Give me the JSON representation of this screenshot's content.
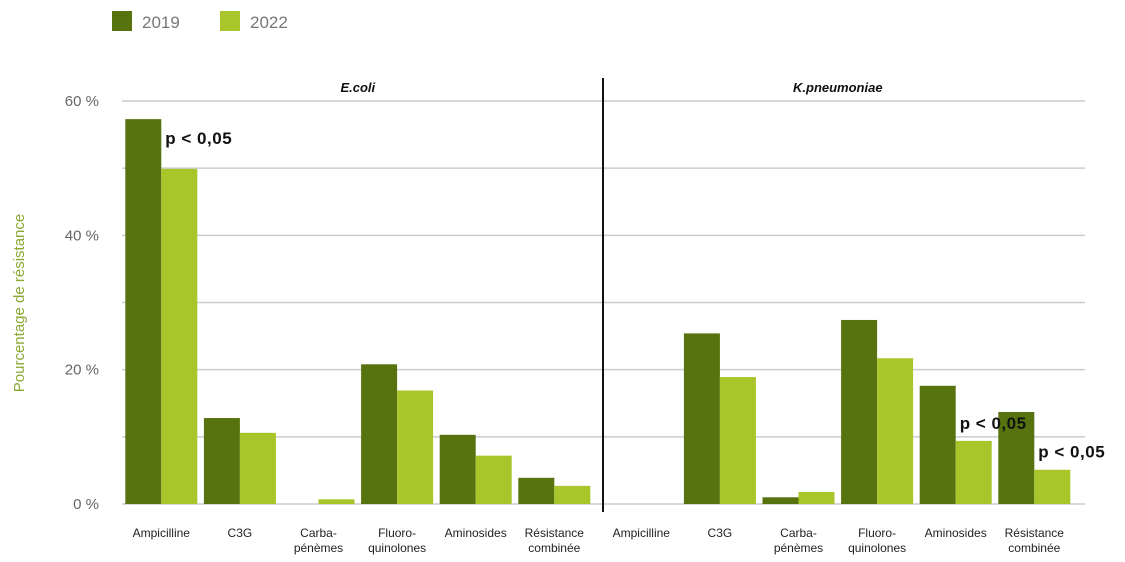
{
  "chart_data": {
    "type": "bar",
    "ylabel": "Pourcentage de résistance",
    "ylim": [
      0,
      60
    ],
    "yticks": [
      "0 %",
      "20 %",
      "40 %",
      "60 %"
    ],
    "grid": true,
    "legend_position": "top-left",
    "colors": {
      "2019": "#56730f",
      "2022": "#a8c62a",
      "ylabel": "#8aa832"
    },
    "panels": [
      {
        "title": "E.coli",
        "categories": [
          "Ampicilline",
          "C3G",
          "Carba-\npénèmes",
          "Fluoro-\nquinolones",
          "Aminosides",
          "Résistance\ncombinée"
        ],
        "series": [
          {
            "name": "2019",
            "values": [
              57.3,
              12.8,
              0.0,
              20.8,
              10.3,
              3.9
            ]
          },
          {
            "name": "2022",
            "values": [
              49.9,
              10.6,
              0.7,
              16.9,
              7.2,
              2.7
            ]
          }
        ],
        "annotations": [
          {
            "category_index": 0,
            "text": "p < 0,05"
          }
        ]
      },
      {
        "title": "K.pneumoniae",
        "categories": [
          "Ampicilline",
          "C3G",
          "Carba-\npénèmes",
          "Fluoro-\nquinolones",
          "Aminosides",
          "Résistance\ncombinée"
        ],
        "series": [
          {
            "name": "2019",
            "values": [
              0,
              25.4,
              1.0,
              27.4,
              17.6,
              13.7
            ]
          },
          {
            "name": "2022",
            "values": [
              0,
              18.9,
              1.8,
              21.7,
              9.4,
              5.1
            ]
          }
        ],
        "annotations": [
          {
            "category_index": 4,
            "text": "p < 0,05"
          },
          {
            "category_index": 5,
            "text": "p < 0,05"
          }
        ]
      }
    ]
  }
}
